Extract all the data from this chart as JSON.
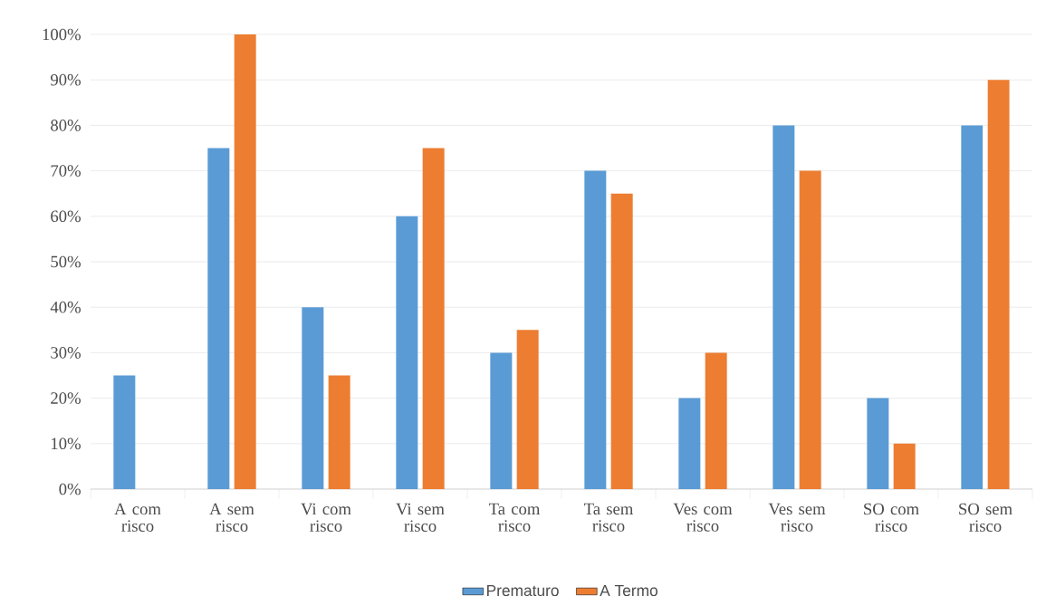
{
  "chart_data": {
    "type": "bar",
    "categories": [
      "A com risco",
      "A sem risco",
      "Vi com risco",
      "Vi sem risco",
      "Ta com risco",
      "Ta sem risco",
      "Ves com risco",
      "Ves sem risco",
      "SO com risco",
      "SO sem risco"
    ],
    "series": [
      {
        "name": "Prematuro",
        "color": "#5b9bd5",
        "values": [
          25,
          75,
          40,
          60,
          30,
          70,
          20,
          80,
          20,
          80
        ]
      },
      {
        "name": "A Termo",
        "color": "#ed7d31",
        "values": [
          0,
          100,
          25,
          75,
          35,
          65,
          30,
          70,
          10,
          90
        ]
      }
    ],
    "ylim": [
      0,
      100
    ],
    "yticks": [
      {
        "value": 0,
        "label": "0%"
      },
      {
        "value": 10,
        "label": "10%"
      },
      {
        "value": 20,
        "label": "20%"
      },
      {
        "value": 30,
        "label": "30%"
      },
      {
        "value": 40,
        "label": "40%"
      },
      {
        "value": 50,
        "label": "50%"
      },
      {
        "value": 60,
        "label": "60%"
      },
      {
        "value": 70,
        "label": "70%"
      },
      {
        "value": 80,
        "label": "80%"
      },
      {
        "value": 90,
        "label": "90%"
      },
      {
        "value": 100,
        "label": "100%"
      }
    ],
    "grid": "y",
    "legend": "bottom"
  }
}
